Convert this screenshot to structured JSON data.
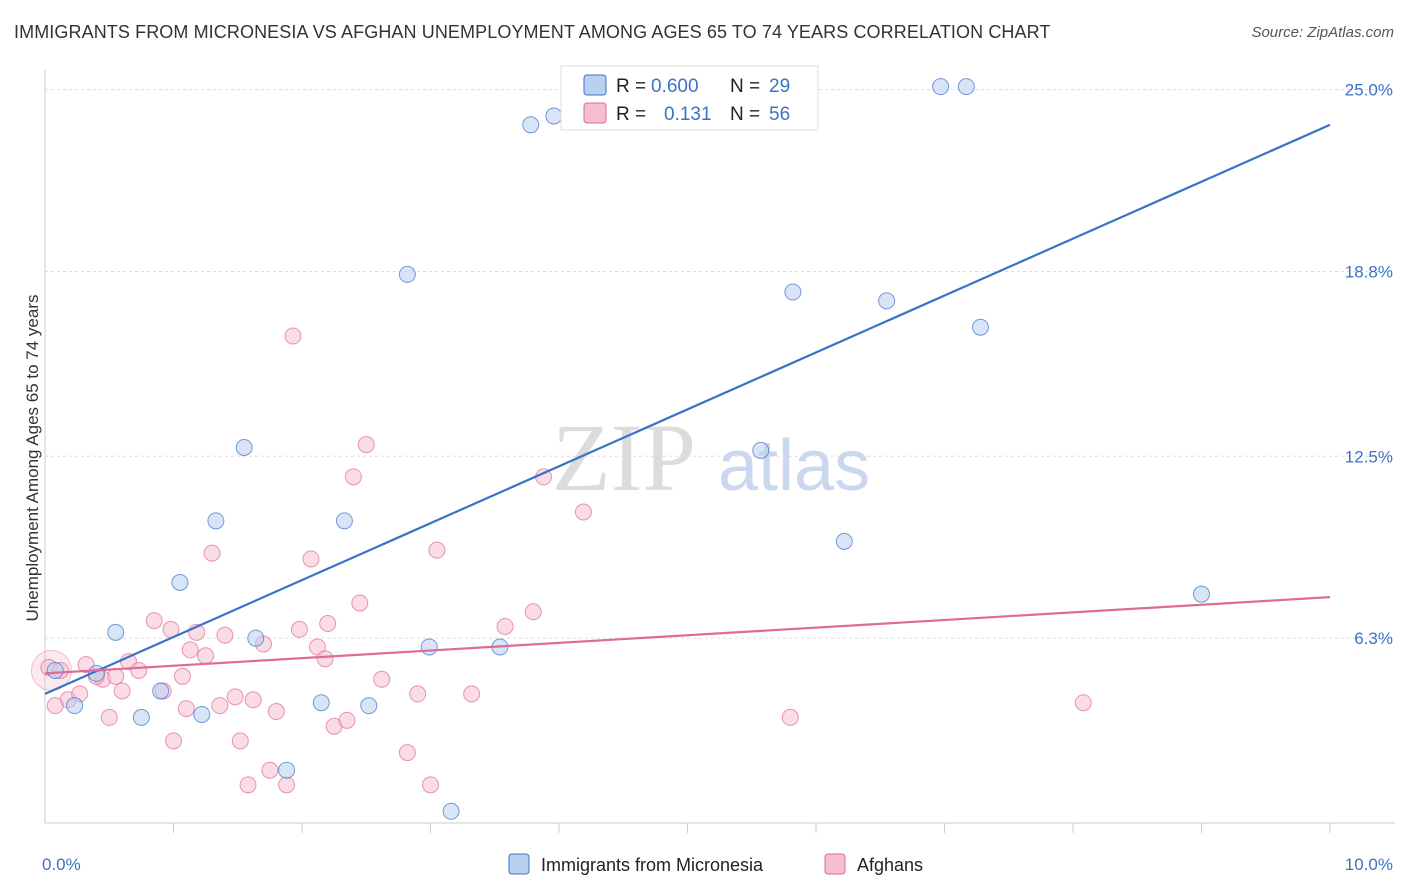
{
  "title": "IMMIGRANTS FROM MICRONESIA VS AFGHAN UNEMPLOYMENT AMONG AGES 65 TO 74 YEARS CORRELATION CHART",
  "source": "Source: ZipAtlas.com",
  "watermark": {
    "zip": "ZIP",
    "atlas": "atlas"
  },
  "colors": {
    "blue": "#3a73c6",
    "blue_fill": "#b9d0f0",
    "pink": "#e06a96",
    "pink_fill": "#f5bfd0",
    "grid": "#dddddd"
  },
  "chart_data": {
    "type": "scatter",
    "title": "IMMIGRANTS FROM MICRONESIA VS AFGHAN UNEMPLOYMENT AMONG AGES 65 TO 74 YEARS CORRELATION CHART",
    "xlabel": "",
    "ylabel": "Unemployment Among Ages 65 to 74 years",
    "xlim": [
      0,
      10
    ],
    "ylim": [
      0,
      25.6
    ],
    "x_tick_labels": [
      "0.0%",
      "10.0%"
    ],
    "y_ticks": [
      6.3,
      12.5,
      18.8,
      25.0
    ],
    "y_tick_labels": [
      "6.3%",
      "12.5%",
      "18.8%",
      "25.0%"
    ],
    "legend": [
      {
        "name": "Immigrants from Micronesia",
        "r_label": "R =",
        "r": "0.600",
        "n_label": "N =",
        "n": "29"
      },
      {
        "name": "Afghans",
        "r_label": "R =",
        "r": "0.131",
        "n_label": "N =",
        "n": "56"
      }
    ],
    "series": [
      {
        "name": "Immigrants from Micronesia",
        "color": "#3a73c6",
        "trend": {
          "x": [
            0,
            10
          ],
          "y": [
            4.4,
            23.8
          ]
        },
        "points": [
          {
            "x": 0.08,
            "y": 5.2
          },
          {
            "x": 0.23,
            "y": 4.0
          },
          {
            "x": 0.4,
            "y": 5.1
          },
          {
            "x": 0.55,
            "y": 6.5
          },
          {
            "x": 0.75,
            "y": 3.6
          },
          {
            "x": 0.9,
            "y": 4.5
          },
          {
            "x": 1.05,
            "y": 8.2
          },
          {
            "x": 1.22,
            "y": 3.7
          },
          {
            "x": 1.33,
            "y": 10.3
          },
          {
            "x": 1.55,
            "y": 12.8
          },
          {
            "x": 1.64,
            "y": 6.3
          },
          {
            "x": 1.88,
            "y": 1.8
          },
          {
            "x": 2.15,
            "y": 4.1
          },
          {
            "x": 2.33,
            "y": 10.3
          },
          {
            "x": 2.52,
            "y": 4.0
          },
          {
            "x": 2.82,
            "y": 18.7
          },
          {
            "x": 2.99,
            "y": 6.0
          },
          {
            "x": 3.16,
            "y": 0.4
          },
          {
            "x": 3.54,
            "y": 6.0
          },
          {
            "x": 3.78,
            "y": 23.8
          },
          {
            "x": 3.96,
            "y": 24.1
          },
          {
            "x": 5.57,
            "y": 12.7
          },
          {
            "x": 5.82,
            "y": 18.1
          },
          {
            "x": 6.22,
            "y": 9.6
          },
          {
            "x": 6.55,
            "y": 17.8
          },
          {
            "x": 7.28,
            "y": 16.9
          },
          {
            "x": 6.97,
            "y": 25.1
          },
          {
            "x": 7.17,
            "y": 25.1
          },
          {
            "x": 9.0,
            "y": 7.8
          }
        ]
      },
      {
        "name": "Afghans",
        "color": "#e06a96",
        "trend": {
          "x": [
            0,
            10
          ],
          "y": [
            5.1,
            7.7
          ]
        },
        "points": [
          {
            "x": 0.03,
            "y": 5.3
          },
          {
            "x": 0.12,
            "y": 5.2
          },
          {
            "x": 0.18,
            "y": 4.2
          },
          {
            "x": 0.27,
            "y": 4.4
          },
          {
            "x": 0.32,
            "y": 5.4
          },
          {
            "x": 0.45,
            "y": 4.9
          },
          {
            "x": 0.5,
            "y": 3.6
          },
          {
            "x": 0.55,
            "y": 5.0
          },
          {
            "x": 0.65,
            "y": 5.5
          },
          {
            "x": 0.73,
            "y": 5.2
          },
          {
            "x": 0.85,
            "y": 6.9
          },
          {
            "x": 0.92,
            "y": 4.5
          },
          {
            "x": 0.98,
            "y": 6.6
          },
          {
            "x": 1.0,
            "y": 2.8
          },
          {
            "x": 1.07,
            "y": 5.0
          },
          {
            "x": 1.13,
            "y": 5.9
          },
          {
            "x": 1.18,
            "y": 6.5
          },
          {
            "x": 1.25,
            "y": 5.7
          },
          {
            "x": 1.3,
            "y": 9.2
          },
          {
            "x": 1.36,
            "y": 4.0
          },
          {
            "x": 1.4,
            "y": 6.4
          },
          {
            "x": 1.48,
            "y": 4.3
          },
          {
            "x": 1.52,
            "y": 2.8
          },
          {
            "x": 1.58,
            "y": 1.3
          },
          {
            "x": 1.62,
            "y": 4.2
          },
          {
            "x": 1.7,
            "y": 6.1
          },
          {
            "x": 1.75,
            "y": 1.8
          },
          {
            "x": 1.8,
            "y": 3.8
          },
          {
            "x": 1.88,
            "y": 1.3
          },
          {
            "x": 1.93,
            "y": 16.6
          },
          {
            "x": 1.98,
            "y": 6.6
          },
          {
            "x": 2.07,
            "y": 9.0
          },
          {
            "x": 2.12,
            "y": 6.0
          },
          {
            "x": 2.18,
            "y": 5.6
          },
          {
            "x": 2.2,
            "y": 6.8
          },
          {
            "x": 2.25,
            "y": 3.3
          },
          {
            "x": 2.35,
            "y": 3.5
          },
          {
            "x": 2.4,
            "y": 11.8
          },
          {
            "x": 2.45,
            "y": 7.5
          },
          {
            "x": 2.5,
            "y": 12.9
          },
          {
            "x": 2.62,
            "y": 4.9
          },
          {
            "x": 2.82,
            "y": 2.4
          },
          {
            "x": 2.9,
            "y": 4.4
          },
          {
            "x": 3.0,
            "y": 1.3
          },
          {
            "x": 3.05,
            "y": 9.3
          },
          {
            "x": 3.32,
            "y": 4.4
          },
          {
            "x": 3.58,
            "y": 6.7
          },
          {
            "x": 3.8,
            "y": 7.2
          },
          {
            "x": 3.88,
            "y": 11.8
          },
          {
            "x": 4.19,
            "y": 10.6
          },
          {
            "x": 5.8,
            "y": 3.6
          },
          {
            "x": 8.08,
            "y": 4.1
          },
          {
            "x": 0.08,
            "y": 4.0
          },
          {
            "x": 0.6,
            "y": 4.5
          },
          {
            "x": 1.1,
            "y": 3.9
          },
          {
            "x": 0.4,
            "y": 5.0
          }
        ]
      }
    ]
  }
}
